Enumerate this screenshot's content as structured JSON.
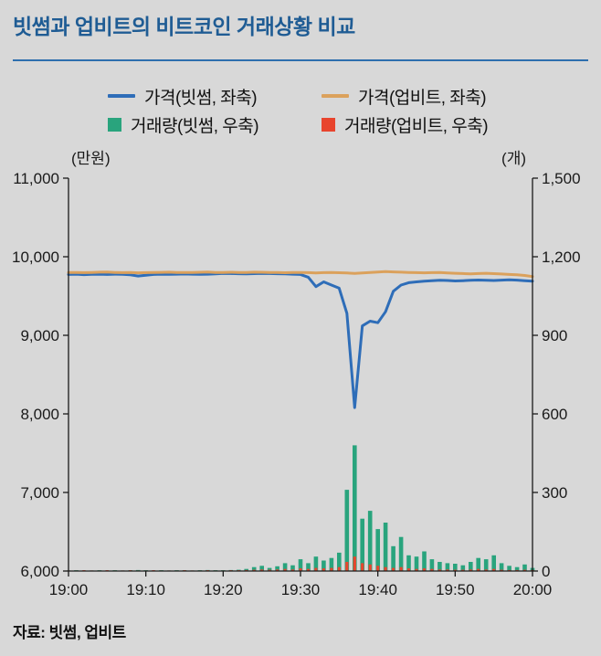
{
  "title": "빗썸과 업비트의 비트코인 거래상황 비교",
  "source": "자료: 빗썸, 업비트",
  "colors": {
    "background": "#d8d8d8",
    "title": "#1f5c94",
    "divider": "#2d6fae",
    "axis": "#1a1a1a",
    "bithumb_price": "#2e6db8",
    "upbit_price": "#dba15c",
    "bithumb_volume": "#29a47d",
    "upbit_volume": "#e8442d"
  },
  "legend": {
    "items": [
      {
        "label": "가격(빗썸, 좌축)",
        "swatch": "line",
        "color_key": "bithumb_price"
      },
      {
        "label": "가격(업비트, 좌축)",
        "swatch": "line",
        "color_key": "upbit_price"
      },
      {
        "label": "거래량(빗썸, 우축)",
        "swatch": "square",
        "color_key": "bithumb_volume"
      },
      {
        "label": "거래량(업비트, 우축)",
        "swatch": "square",
        "color_key": "upbit_volume"
      }
    ]
  },
  "chart_data": {
    "type": "mixed-line-bar",
    "title": "빗썸과 업비트의 비트코인 거래상황 비교",
    "x_description": "time from 19:00 to 20:00, one point per minute",
    "x_ticks": [
      {
        "i": 0,
        "label": "19:00"
      },
      {
        "i": 10,
        "label": "19:10"
      },
      {
        "i": 20,
        "label": "19:20"
      },
      {
        "i": 30,
        "label": "19:30"
      },
      {
        "i": 40,
        "label": "19:40"
      },
      {
        "i": 50,
        "label": "19:50"
      },
      {
        "i": 60,
        "label": "20:00"
      }
    ],
    "left_axis": {
      "unit": "(만원)",
      "min": 6000,
      "max": 11000,
      "ticks": [
        {
          "v": 6000,
          "label": "6,000"
        },
        {
          "v": 7000,
          "label": "7,000"
        },
        {
          "v": 8000,
          "label": "8,000"
        },
        {
          "v": 9000,
          "label": "9,000"
        },
        {
          "v": 10000,
          "label": "10,000"
        },
        {
          "v": 11000,
          "label": "11,000"
        }
      ]
    },
    "right_axis": {
      "unit": "(개)",
      "min": 0,
      "max": 1500,
      "ticks": [
        {
          "v": 0,
          "label": "0"
        },
        {
          "v": 300,
          "label": "300"
        },
        {
          "v": 600,
          "label": "600"
        },
        {
          "v": 900,
          "label": "900"
        },
        {
          "v": 1200,
          "label": "1,200"
        },
        {
          "v": 1500,
          "label": "1,500"
        }
      ]
    },
    "series": [
      {
        "name": "가격(빗썸, 좌축)",
        "type": "line",
        "axis": "left",
        "color_key": "bithumb_price",
        "values": [
          9775,
          9778,
          9772,
          9776,
          9778,
          9775,
          9778,
          9776,
          9770,
          9755,
          9765,
          9775,
          9778,
          9776,
          9778,
          9780,
          9778,
          9776,
          9778,
          9782,
          9788,
          9786,
          9784,
          9782,
          9785,
          9788,
          9786,
          9784,
          9782,
          9778,
          9775,
          9740,
          9620,
          9680,
          9640,
          9600,
          9280,
          8080,
          9120,
          9180,
          9160,
          9300,
          9560,
          9640,
          9670,
          9680,
          9690,
          9695,
          9700,
          9698,
          9692,
          9695,
          9700,
          9704,
          9700,
          9698,
          9702,
          9706,
          9702,
          9695,
          9690
        ]
      },
      {
        "name": "가격(업비트, 좌축)",
        "type": "line",
        "axis": "left",
        "color_key": "upbit_price",
        "values": [
          9800,
          9800,
          9798,
          9800,
          9803,
          9806,
          9800,
          9798,
          9800,
          9795,
          9798,
          9800,
          9801,
          9803,
          9800,
          9799,
          9800,
          9802,
          9805,
          9800,
          9799,
          9802,
          9800,
          9799,
          9804,
          9802,
          9800,
          9799,
          9797,
          9800,
          9800,
          9798,
          9794,
          9798,
          9800,
          9797,
          9793,
          9788,
          9794,
          9800,
          9805,
          9810,
          9807,
          9804,
          9800,
          9798,
          9795,
          9798,
          9800,
          9794,
          9790,
          9786,
          9782,
          9786,
          9790,
          9785,
          9780,
          9775,
          9770,
          9762,
          9748
        ]
      },
      {
        "name": "거래량(빗썸, 우축)",
        "type": "bar",
        "axis": "right",
        "color_key": "bithumb_volume",
        "values": [
          2,
          3,
          2,
          2,
          3,
          2,
          3,
          2,
          3,
          4,
          3,
          2,
          3,
          2,
          3,
          3,
          2,
          3,
          4,
          3,
          3,
          4,
          5,
          8,
          15,
          20,
          12,
          18,
          30,
          22,
          45,
          30,
          55,
          40,
          50,
          70,
          310,
          480,
          200,
          230,
          160,
          185,
          95,
          130,
          60,
          55,
          75,
          45,
          35,
          30,
          28,
          22,
          35,
          50,
          45,
          60,
          30,
          20,
          15,
          25,
          12
        ]
      },
      {
        "name": "거래량(업비트, 우축)",
        "type": "bar",
        "axis": "right",
        "color_key": "upbit_volume",
        "values": [
          2,
          2,
          3,
          2,
          2,
          3,
          2,
          2,
          3,
          2,
          2,
          3,
          2,
          2,
          2,
          3,
          2,
          2,
          3,
          2,
          2,
          3,
          3,
          4,
          5,
          6,
          5,
          6,
          8,
          6,
          10,
          8,
          12,
          10,
          12,
          15,
          35,
          55,
          30,
          25,
          20,
          15,
          12,
          15,
          10,
          8,
          10,
          8,
          6,
          6,
          5,
          5,
          6,
          8,
          6,
          8,
          5,
          4,
          4,
          5,
          4
        ]
      }
    ],
    "legend_position": "top",
    "grid": false
  }
}
